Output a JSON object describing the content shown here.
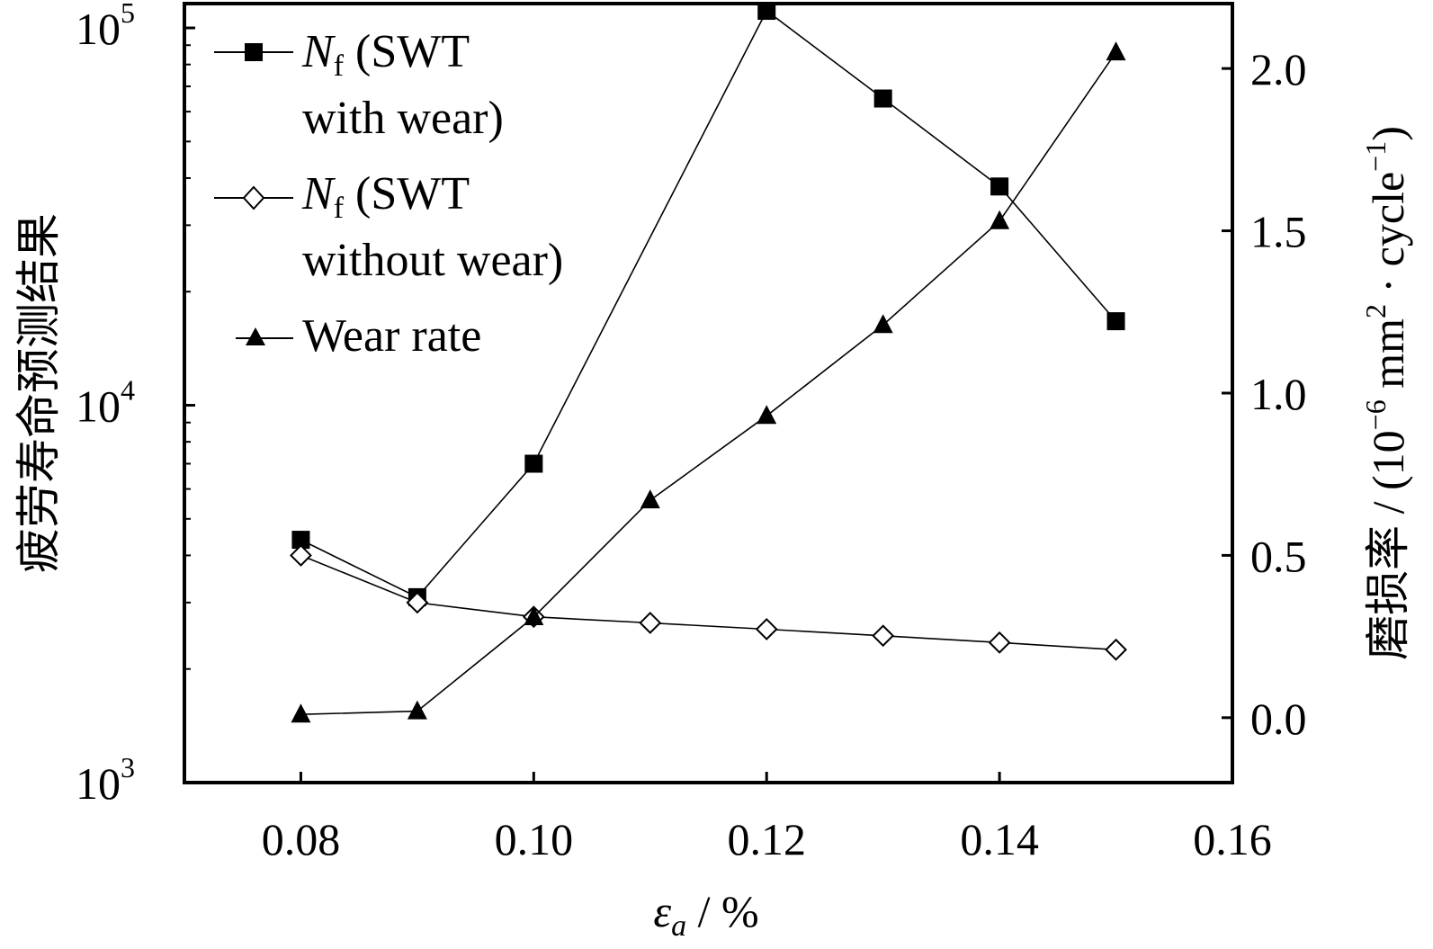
{
  "chart_data": {
    "type": "line",
    "x_axis": {
      "label_symbol": "ε",
      "label_subscript": "a",
      "label_unit": " / %",
      "range": [
        0.07,
        0.16
      ],
      "ticks": [
        0.08,
        0.1,
        0.12,
        0.14,
        0.16
      ],
      "tick_labels": [
        "0.08",
        "0.10",
        "0.12",
        "0.14",
        "0.16"
      ]
    },
    "y_left": {
      "label": "疲劳寿命预测结果",
      "scale": "log",
      "range": [
        1000,
        116000
      ],
      "ticks": [
        {
          "base": "10",
          "exp": "3",
          "value": 1000
        },
        {
          "base": "10",
          "exp": "4",
          "value": 10000
        },
        {
          "base": "10",
          "exp": "5",
          "value": 100000
        }
      ]
    },
    "y_right": {
      "label_cn": "磨损率",
      "label_unit_prefix": " / (10",
      "label_unit_exp1": "−6",
      "label_unit_mid": " mm",
      "label_unit_exp2": "2",
      "label_unit_dot": " · cycle",
      "label_unit_exp3": "−1",
      "label_unit_close": ")",
      "scale": "linear",
      "range": [
        -0.2,
        2.2
      ],
      "ticks": [
        0.0,
        0.5,
        1.0,
        1.5,
        2.0
      ],
      "tick_labels": [
        "0.0",
        "0.5",
        "1.0",
        "1.5",
        "2.0"
      ]
    },
    "series": [
      {
        "name_symbol": "N",
        "name_sub": "f",
        "name_line1": " (SWT",
        "name_line2": "with wear)",
        "axis": "left",
        "marker": "filled-square",
        "x": [
          0.08,
          0.09,
          0.1,
          0.12,
          0.13,
          0.14,
          0.15
        ],
        "y": [
          4400,
          3100,
          7000,
          111000,
          65000,
          38000,
          16700
        ]
      },
      {
        "name_symbol": "N",
        "name_sub": "f",
        "name_line1": " (SWT",
        "name_line2": "without wear)",
        "axis": "left",
        "marker": "open-diamond",
        "x": [
          0.08,
          0.09,
          0.1,
          0.11,
          0.12,
          0.13,
          0.14,
          0.15
        ],
        "y": [
          4000,
          3000,
          2750,
          2650,
          2550,
          2450,
          2350,
          2250
        ]
      },
      {
        "name": "Wear rate",
        "axis": "right",
        "marker": "filled-triangle",
        "x": [
          0.08,
          0.09,
          0.1,
          0.11,
          0.12,
          0.13,
          0.14,
          0.15
        ],
        "y": [
          0.01,
          0.02,
          0.31,
          0.67,
          0.93,
          1.21,
          1.53,
          2.05
        ]
      }
    ],
    "legend_position": "top-left",
    "grid": false
  }
}
